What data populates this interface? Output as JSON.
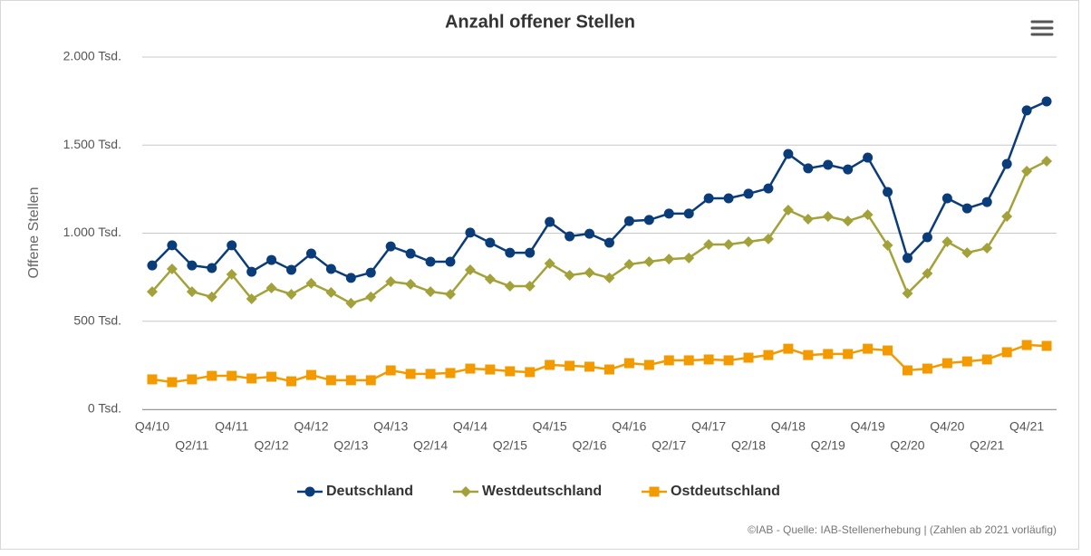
{
  "chart_data": {
    "type": "line",
    "title": "Anzahl offener Stellen",
    "y_label": "Offene Stellen",
    "source": "©IAB - Quelle: IAB-Stellenerhebung | (Zahlen ab 2021 vorläufig)",
    "categories": [
      "Q4/10",
      null,
      "Q2/11",
      null,
      "Q4/11",
      null,
      "Q2/12",
      null,
      "Q4/12",
      null,
      "Q2/13",
      null,
      "Q4/13",
      null,
      "Q2/14",
      null,
      "Q4/14",
      null,
      "Q2/15",
      null,
      "Q4/15",
      null,
      "Q2/16",
      null,
      "Q4/16",
      null,
      "Q2/17",
      null,
      "Q4/17",
      null,
      "Q2/18",
      null,
      "Q4/18",
      null,
      "Q2/19",
      null,
      "Q4/19",
      null,
      "Q2/20",
      null,
      "Q4/20",
      null,
      "Q2/21",
      null,
      "Q4/21",
      null
    ],
    "series": [
      {
        "name": "Deutschland",
        "color": "#0b3c7a",
        "marker": "circle",
        "values": [
          817,
          931,
          817,
          802,
          931,
          781,
          848,
          792,
          884,
          797,
          746,
          776,
          925,
          884,
          838,
          838,
          1003,
          946,
          889,
          889,
          1064,
          982,
          997,
          946,
          1069,
          1075,
          1111,
          1111,
          1198,
          1198,
          1224,
          1254,
          1450,
          1368,
          1388,
          1362,
          1429,
          1234,
          859,
          977,
          1198,
          1141,
          1177,
          1393,
          1697,
          1748
        ]
      },
      {
        "name": "Westdeutschland",
        "color": "#a3a23a",
        "marker": "diamond",
        "values": [
          668,
          797,
          668,
          638,
          766,
          627,
          689,
          653,
          715,
          663,
          602,
          638,
          725,
          710,
          668,
          653,
          792,
          740,
          699,
          699,
          828,
          761,
          776,
          746,
          823,
          838,
          853,
          859,
          936,
          936,
          951,
          967,
          1131,
          1080,
          1095,
          1069,
          1105,
          931,
          658,
          771,
          951,
          889,
          915,
          1095,
          1352,
          1409
        ]
      },
      {
        "name": "Ostdeutschland",
        "color": "#f29a00",
        "marker": "square",
        "values": [
          170,
          154,
          170,
          190,
          190,
          175,
          185,
          159,
          195,
          165,
          165,
          165,
          221,
          201,
          201,
          206,
          231,
          226,
          216,
          211,
          252,
          247,
          242,
          226,
          262,
          252,
          278,
          278,
          283,
          278,
          293,
          308,
          344,
          308,
          314,
          314,
          344,
          334,
          221,
          231,
          262,
          272,
          283,
          324,
          365,
          360
        ]
      }
    ],
    "ylim": [
      0,
      2000
    ],
    "yticks": [
      {
        "value": 0,
        "label": "0 Tsd."
      },
      {
        "value": 500,
        "label": "500 Tsd."
      },
      {
        "value": 1000,
        "label": "1.000 Tsd."
      },
      {
        "value": 1500,
        "label": "1.500 Tsd."
      },
      {
        "value": 2000,
        "label": "2.000 Tsd."
      }
    ],
    "grid": true,
    "legend": "bottom"
  }
}
